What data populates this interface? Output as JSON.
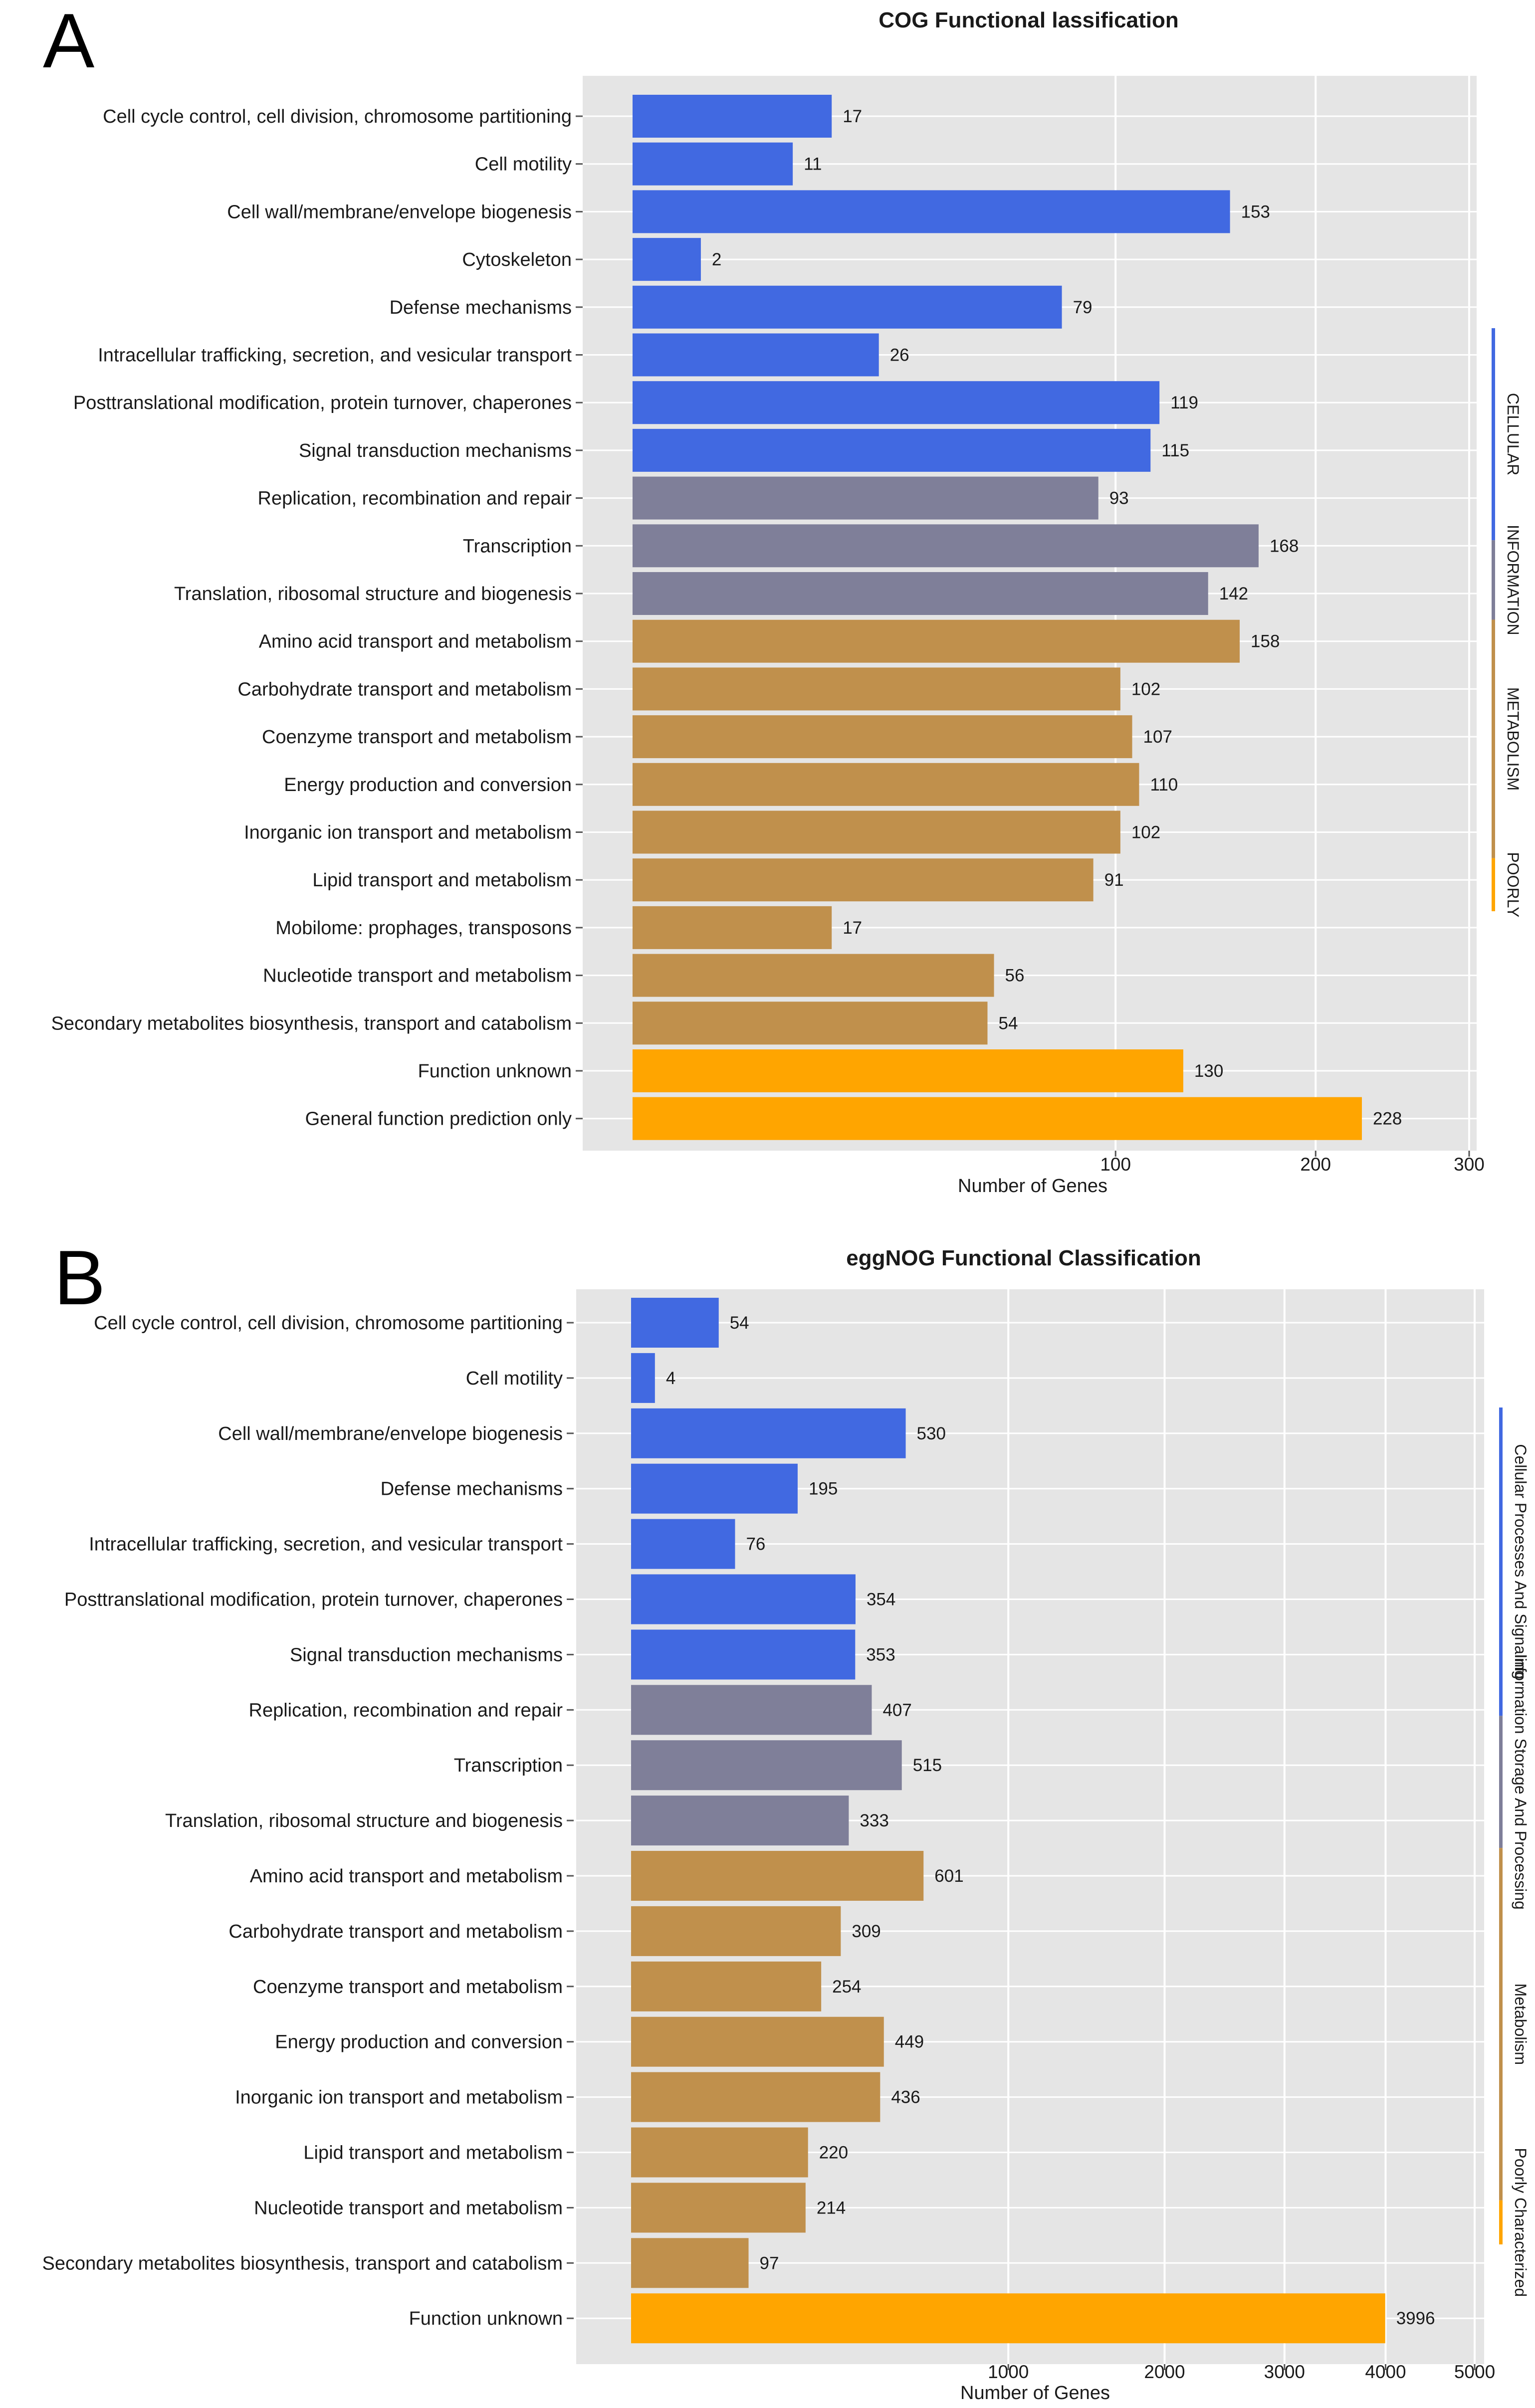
{
  "panels": {
    "a": {
      "letter": "A"
    },
    "b": {
      "letter": "B"
    }
  },
  "colors": {
    "cellular": "#4169e1",
    "information": "#7f7f99",
    "metabolism": "#c0904c",
    "poorly": "#ffa500",
    "panel_bg": "#e5e5e5",
    "grid": "#ffffff"
  },
  "chart_data": [
    {
      "type": "bar",
      "orientation": "horizontal",
      "title": "COG  Functional lassification",
      "xlabel": "Number of Genes",
      "ylabel": "",
      "x_scale": "sqrt",
      "xlim": [
        0,
        300
      ],
      "xticks": [
        100,
        200,
        300
      ],
      "xtick_labels": [
        "100",
        "200",
        "300"
      ],
      "categories": [
        "Cell cycle control, cell division, chromosome partitioning",
        "Cell motility",
        "Cell wall/membrane/envelope biogenesis",
        "Cytoskeleton",
        "Defense mechanisms",
        "Intracellular trafficking, secretion, and vesicular transport",
        "Posttranslational modification, protein turnover, chaperones",
        "Signal transduction mechanisms",
        "Replication, recombination and repair",
        "Transcription",
        "Translation, ribosomal structure and biogenesis",
        "Amino acid transport and metabolism",
        "Carbohydrate transport and metabolism",
        "Coenzyme transport and metabolism",
        "Energy production and conversion",
        "Inorganic ion transport and metabolism",
        "Lipid transport and metabolism",
        "Mobilome: prophages, transposons",
        "Nucleotide transport and metabolism",
        "Secondary metabolites biosynthesis, transport and catabolism",
        "Function unknown",
        "General function prediction only"
      ],
      "values": [
        17,
        11,
        153,
        2,
        79,
        26,
        119,
        115,
        93,
        168,
        142,
        158,
        102,
        107,
        110,
        102,
        91,
        17,
        56,
        54,
        130,
        228
      ],
      "groups": [
        "cellular",
        "cellular",
        "cellular",
        "cellular",
        "cellular",
        "cellular",
        "cellular",
        "cellular",
        "information",
        "information",
        "information",
        "metabolism",
        "metabolism",
        "metabolism",
        "metabolism",
        "metabolism",
        "metabolism",
        "metabolism",
        "metabolism",
        "metabolism",
        "poorly",
        "poorly"
      ],
      "group_legend": [
        {
          "key": "cellular",
          "label": "CELLULAR"
        },
        {
          "key": "information",
          "label": "INFORMATION"
        },
        {
          "key": "metabolism",
          "label": "METABOLISM"
        },
        {
          "key": "poorly",
          "label": "POORLY"
        }
      ],
      "grid": true,
      "legend_position": "right"
    },
    {
      "type": "bar",
      "orientation": "horizontal",
      "title": "eggNOG Functional Classification",
      "xlabel": "Number of Genes",
      "ylabel": "",
      "x_scale": "sqrt",
      "xlim": [
        0,
        5000
      ],
      "xticks": [
        1000,
        2000,
        3000,
        4000,
        5000
      ],
      "xtick_labels": [
        "1000",
        "2000",
        "3000",
        "4000",
        "5000"
      ],
      "categories": [
        "Cell cycle control, cell division, chromosome partitioning",
        "Cell motility",
        "Cell wall/membrane/envelope biogenesis",
        "Defense mechanisms",
        "Intracellular trafficking, secretion, and vesicular transport",
        "Posttranslational modification, protein turnover, chaperones",
        "Signal transduction mechanisms",
        "Replication, recombination and repair",
        "Transcription",
        "Translation, ribosomal structure and biogenesis",
        "Amino acid transport and metabolism",
        "Carbohydrate transport and metabolism",
        "Coenzyme transport and metabolism",
        "Energy production and conversion",
        "Inorganic ion transport and metabolism",
        "Lipid transport and metabolism",
        "Nucleotide transport and metabolism",
        "Secondary metabolites biosynthesis, transport and catabolism",
        "Function unknown"
      ],
      "values": [
        54,
        4,
        530,
        195,
        76,
        354,
        353,
        407,
        515,
        333,
        601,
        309,
        254,
        449,
        436,
        220,
        214,
        97,
        3996
      ],
      "groups": [
        "cellular",
        "cellular",
        "cellular",
        "cellular",
        "cellular",
        "cellular",
        "cellular",
        "information",
        "information",
        "information",
        "metabolism",
        "metabolism",
        "metabolism",
        "metabolism",
        "metabolism",
        "metabolism",
        "metabolism",
        "metabolism",
        "poorly"
      ],
      "group_legend": [
        {
          "key": "cellular",
          "label": "Cellular Processes And Signaling"
        },
        {
          "key": "information",
          "label": "Information Storage And Processing"
        },
        {
          "key": "metabolism",
          "label": "Metabolism"
        },
        {
          "key": "poorly",
          "label": "Poorly Characterized"
        }
      ],
      "grid": true,
      "legend_position": "right"
    }
  ]
}
